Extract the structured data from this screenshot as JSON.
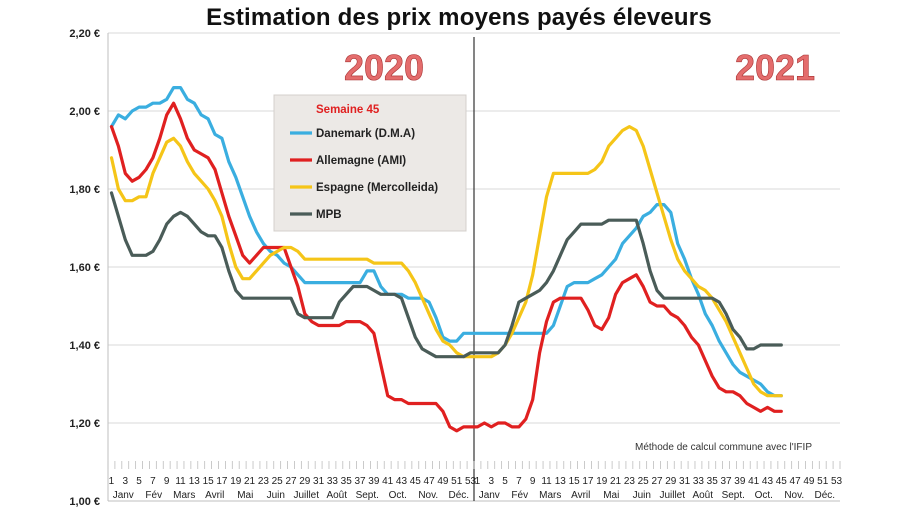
{
  "chart_data": {
    "type": "line",
    "title": "Estimation des prix moyens payés éleveurs",
    "year_labels": [
      "2020",
      "2021"
    ],
    "y_tick_labels": [
      "1,00 €",
      "1,20 €",
      "1,40 €",
      "1,60 €",
      "1,80 €",
      "2,00 €",
      "2,20 €"
    ],
    "y_tick_values": [
      1.0,
      1.2,
      1.4,
      1.6,
      1.8,
      2.0,
      2.2
    ],
    "ylim": [
      1.0,
      2.2
    ],
    "weeks_per_year": 53,
    "x_week_ticks_2020": [
      "1",
      "3",
      "5",
      "7",
      "9",
      "11",
      "13",
      "15",
      "17",
      "19",
      "21",
      "23",
      "25",
      "27",
      "29",
      "31",
      "33",
      "35",
      "37",
      "39",
      "41",
      "43",
      "45",
      "47",
      "49",
      "51",
      "53"
    ],
    "x_week_ticks_2021": [
      "1",
      "3",
      "5",
      "7",
      "9",
      "11",
      "13",
      "15",
      "17",
      "19",
      "21",
      "23",
      "25",
      "27",
      "29",
      "31",
      "33",
      "35",
      "37",
      "39",
      "41",
      "43",
      "45",
      "47",
      "49",
      "51",
      "53"
    ],
    "months_2020": [
      "Janv",
      "Fév",
      "Mars",
      "Avril",
      "Mai",
      "Juin",
      "Juillet",
      "Août",
      "Sept.",
      "Oct.",
      "Nov.",
      "Déc."
    ],
    "months_2021": [
      "Janv",
      "Fév",
      "Mars",
      "Avril",
      "Mai",
      "Juin",
      "Juillet",
      "Août",
      "Sept.",
      "Oct.",
      "Nov.",
      "Déc."
    ],
    "legend_title": "Semaine 45",
    "legend_position": "top-left",
    "footnote": "Méthode de calcul commune avec l'IFIP",
    "series": [
      {
        "name": "Danemark (D.M.A)",
        "color": "#3aaee0",
        "x": [
          1,
          2,
          3,
          4,
          5,
          6,
          7,
          8,
          9,
          10,
          11,
          12,
          13,
          14,
          15,
          16,
          17,
          18,
          19,
          20,
          21,
          22,
          23,
          24,
          25,
          26,
          27,
          28,
          29,
          30,
          31,
          32,
          33,
          34,
          35,
          36,
          37,
          38,
          39,
          40,
          41,
          42,
          43,
          44,
          45,
          46,
          47,
          48,
          49,
          50,
          51,
          52,
          53,
          54,
          55,
          56,
          57,
          58,
          59,
          60,
          61,
          62,
          63,
          64,
          65,
          66,
          67,
          68,
          69,
          70,
          71,
          72,
          73,
          74,
          75,
          76,
          77,
          78,
          79,
          80,
          81,
          82,
          83,
          84,
          85,
          86,
          87,
          88,
          89,
          90,
          91,
          92,
          93,
          94,
          95,
          96,
          97,
          98
        ],
        "values": [
          1.96,
          1.99,
          1.98,
          2.0,
          2.01,
          2.01,
          2.02,
          2.02,
          2.03,
          2.06,
          2.06,
          2.03,
          2.02,
          1.99,
          1.98,
          1.94,
          1.93,
          1.87,
          1.83,
          1.78,
          1.73,
          1.69,
          1.66,
          1.64,
          1.63,
          1.61,
          1.6,
          1.58,
          1.56,
          1.56,
          1.56,
          1.56,
          1.56,
          1.56,
          1.56,
          1.56,
          1.56,
          1.59,
          1.59,
          1.55,
          1.53,
          1.53,
          1.53,
          1.52,
          1.52,
          1.52,
          1.51,
          1.47,
          1.42,
          1.41,
          1.41,
          1.43,
          1.43,
          1.43,
          1.43,
          1.43,
          1.43,
          1.43,
          1.43,
          1.43,
          1.43,
          1.43,
          1.43,
          1.43,
          1.45,
          1.5,
          1.55,
          1.56,
          1.56,
          1.56,
          1.57,
          1.58,
          1.6,
          1.62,
          1.66,
          1.68,
          1.7,
          1.73,
          1.74,
          1.76,
          1.76,
          1.74,
          1.66,
          1.62,
          1.57,
          1.53,
          1.48,
          1.45,
          1.41,
          1.38,
          1.35,
          1.33,
          1.32,
          1.31,
          1.3,
          1.28,
          1.27,
          1.27
        ]
      },
      {
        "name": "Allemagne (AMI)",
        "color": "#e02020",
        "x": [
          1,
          2,
          3,
          4,
          5,
          6,
          7,
          8,
          9,
          10,
          11,
          12,
          13,
          14,
          15,
          16,
          17,
          18,
          19,
          20,
          21,
          22,
          23,
          24,
          25,
          26,
          27,
          28,
          29,
          30,
          31,
          32,
          33,
          34,
          35,
          36,
          37,
          38,
          39,
          40,
          41,
          42,
          43,
          44,
          45,
          46,
          47,
          48,
          49,
          50,
          51,
          52,
          53,
          54,
          55,
          56,
          57,
          58,
          59,
          60,
          61,
          62,
          63,
          64,
          65,
          66,
          67,
          68,
          69,
          70,
          71,
          72,
          73,
          74,
          75,
          76,
          77,
          78,
          79,
          80,
          81,
          82,
          83,
          84,
          85,
          86,
          87,
          88,
          89,
          90,
          91,
          92,
          93,
          94,
          95,
          96,
          97,
          98
        ],
        "values": [
          1.96,
          1.91,
          1.84,
          1.82,
          1.83,
          1.85,
          1.88,
          1.93,
          1.99,
          2.02,
          1.98,
          1.93,
          1.9,
          1.89,
          1.88,
          1.85,
          1.79,
          1.73,
          1.68,
          1.63,
          1.61,
          1.63,
          1.65,
          1.65,
          1.65,
          1.65,
          1.6,
          1.55,
          1.48,
          1.46,
          1.45,
          1.45,
          1.45,
          1.45,
          1.46,
          1.46,
          1.46,
          1.45,
          1.43,
          1.35,
          1.27,
          1.26,
          1.26,
          1.25,
          1.25,
          1.25,
          1.25,
          1.25,
          1.23,
          1.19,
          1.18,
          1.19,
          1.19,
          1.19,
          1.2,
          1.19,
          1.2,
          1.2,
          1.19,
          1.19,
          1.21,
          1.26,
          1.38,
          1.46,
          1.51,
          1.52,
          1.52,
          1.52,
          1.52,
          1.49,
          1.45,
          1.44,
          1.47,
          1.53,
          1.56,
          1.57,
          1.58,
          1.55,
          1.51,
          1.5,
          1.5,
          1.48,
          1.47,
          1.45,
          1.42,
          1.4,
          1.36,
          1.32,
          1.29,
          1.28,
          1.28,
          1.27,
          1.25,
          1.24,
          1.23,
          1.24,
          1.23,
          1.23
        ]
      },
      {
        "name": "Espagne (Mercolleida)",
        "color": "#f5c518",
        "x": [
          1,
          2,
          3,
          4,
          5,
          6,
          7,
          8,
          9,
          10,
          11,
          12,
          13,
          14,
          15,
          16,
          17,
          18,
          19,
          20,
          21,
          22,
          23,
          24,
          25,
          26,
          27,
          28,
          29,
          30,
          31,
          32,
          33,
          34,
          35,
          36,
          37,
          38,
          39,
          40,
          41,
          42,
          43,
          44,
          45,
          46,
          47,
          48,
          49,
          50,
          51,
          52,
          53,
          54,
          55,
          56,
          57,
          58,
          59,
          60,
          61,
          62,
          63,
          64,
          65,
          66,
          67,
          68,
          69,
          70,
          71,
          72,
          73,
          74,
          75,
          76,
          77,
          78,
          79,
          80,
          81,
          82,
          83,
          84,
          85,
          86,
          87,
          88,
          89,
          90,
          91,
          92,
          93,
          94,
          95,
          96,
          97,
          98
        ],
        "values": [
          1.88,
          1.8,
          1.77,
          1.77,
          1.78,
          1.78,
          1.84,
          1.88,
          1.92,
          1.93,
          1.91,
          1.87,
          1.84,
          1.82,
          1.8,
          1.77,
          1.73,
          1.66,
          1.6,
          1.57,
          1.57,
          1.59,
          1.61,
          1.63,
          1.64,
          1.65,
          1.65,
          1.64,
          1.62,
          1.62,
          1.62,
          1.62,
          1.62,
          1.62,
          1.62,
          1.62,
          1.62,
          1.62,
          1.61,
          1.61,
          1.61,
          1.61,
          1.61,
          1.59,
          1.56,
          1.52,
          1.48,
          1.44,
          1.41,
          1.4,
          1.38,
          1.37,
          1.37,
          1.37,
          1.37,
          1.37,
          1.38,
          1.4,
          1.43,
          1.47,
          1.51,
          1.58,
          1.68,
          1.78,
          1.84,
          1.84,
          1.84,
          1.84,
          1.84,
          1.84,
          1.85,
          1.87,
          1.91,
          1.93,
          1.95,
          1.96,
          1.95,
          1.91,
          1.85,
          1.79,
          1.73,
          1.67,
          1.62,
          1.59,
          1.57,
          1.55,
          1.54,
          1.52,
          1.49,
          1.46,
          1.42,
          1.38,
          1.34,
          1.3,
          1.28,
          1.27,
          1.27,
          1.27
        ]
      },
      {
        "name": "MPB",
        "color": "#4a5c58",
        "x": [
          1,
          2,
          3,
          4,
          5,
          6,
          7,
          8,
          9,
          10,
          11,
          12,
          13,
          14,
          15,
          16,
          17,
          18,
          19,
          20,
          21,
          22,
          23,
          24,
          25,
          26,
          27,
          28,
          29,
          30,
          31,
          32,
          33,
          34,
          35,
          36,
          37,
          38,
          39,
          40,
          41,
          42,
          43,
          44,
          45,
          46,
          47,
          48,
          49,
          50,
          51,
          52,
          53,
          54,
          55,
          56,
          57,
          58,
          59,
          60,
          61,
          62,
          63,
          64,
          65,
          66,
          67,
          68,
          69,
          70,
          71,
          72,
          73,
          74,
          75,
          76,
          77,
          78,
          79,
          80,
          81,
          82,
          83,
          84,
          85,
          86,
          87,
          88,
          89,
          90,
          91,
          92,
          93,
          94,
          95,
          96,
          97,
          98
        ],
        "values": [
          1.79,
          1.73,
          1.67,
          1.63,
          1.63,
          1.63,
          1.64,
          1.67,
          1.71,
          1.73,
          1.74,
          1.73,
          1.71,
          1.69,
          1.68,
          1.68,
          1.65,
          1.59,
          1.54,
          1.52,
          1.52,
          1.52,
          1.52,
          1.52,
          1.52,
          1.52,
          1.52,
          1.48,
          1.47,
          1.47,
          1.47,
          1.47,
          1.47,
          1.51,
          1.53,
          1.55,
          1.55,
          1.55,
          1.54,
          1.53,
          1.53,
          1.53,
          1.52,
          1.47,
          1.42,
          1.39,
          1.38,
          1.37,
          1.37,
          1.37,
          1.37,
          1.37,
          1.38,
          1.38,
          1.38,
          1.38,
          1.38,
          1.4,
          1.45,
          1.51,
          1.52,
          1.53,
          1.54,
          1.56,
          1.59,
          1.63,
          1.67,
          1.69,
          1.71,
          1.71,
          1.71,
          1.71,
          1.72,
          1.72,
          1.72,
          1.72,
          1.72,
          1.66,
          1.59,
          1.54,
          1.52,
          1.52,
          1.52,
          1.52,
          1.52,
          1.52,
          1.52,
          1.52,
          1.51,
          1.48,
          1.44,
          1.42,
          1.39,
          1.39,
          1.4,
          1.4,
          1.4,
          1.4
        ]
      }
    ]
  }
}
